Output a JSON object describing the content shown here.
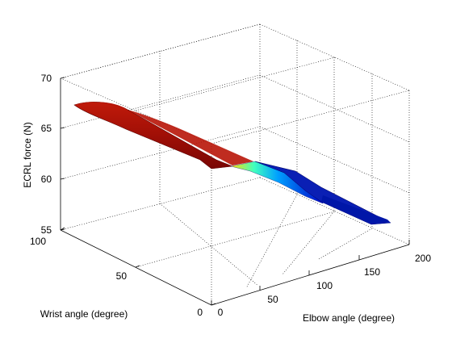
{
  "chart_data": {
    "type": "surface",
    "title": "",
    "zlabel": "ECRL force (N)",
    "xlabel": "Elbow angle (degree)",
    "ylabel": "Wrist angle (degree)",
    "zlim": [
      55,
      70
    ],
    "xlim": [
      0,
      200
    ],
    "ylim": [
      0,
      100
    ],
    "z_ticks": [
      "55",
      "60",
      "65",
      "70"
    ],
    "x_ticks": [
      "0",
      "50",
      "100",
      "150",
      "200"
    ],
    "y_ticks": [
      "0",
      "50",
      "100"
    ],
    "grid": true,
    "colormap": [
      "#00008f",
      "#0000ff",
      "#00ffff",
      "#ffff00",
      "#ff0000",
      "#800000"
    ],
    "surface": {
      "elbow_start": 20,
      "elbow_end": 180,
      "wrist_start": 55,
      "wrist_end": 95,
      "force_profile_elbow": [
        20,
        60,
        90,
        105,
        120,
        150,
        180
      ],
      "force_profile_values": [
        67.0,
        66.0,
        63.0,
        62.0,
        60.0,
        57.5,
        55.5
      ]
    }
  }
}
